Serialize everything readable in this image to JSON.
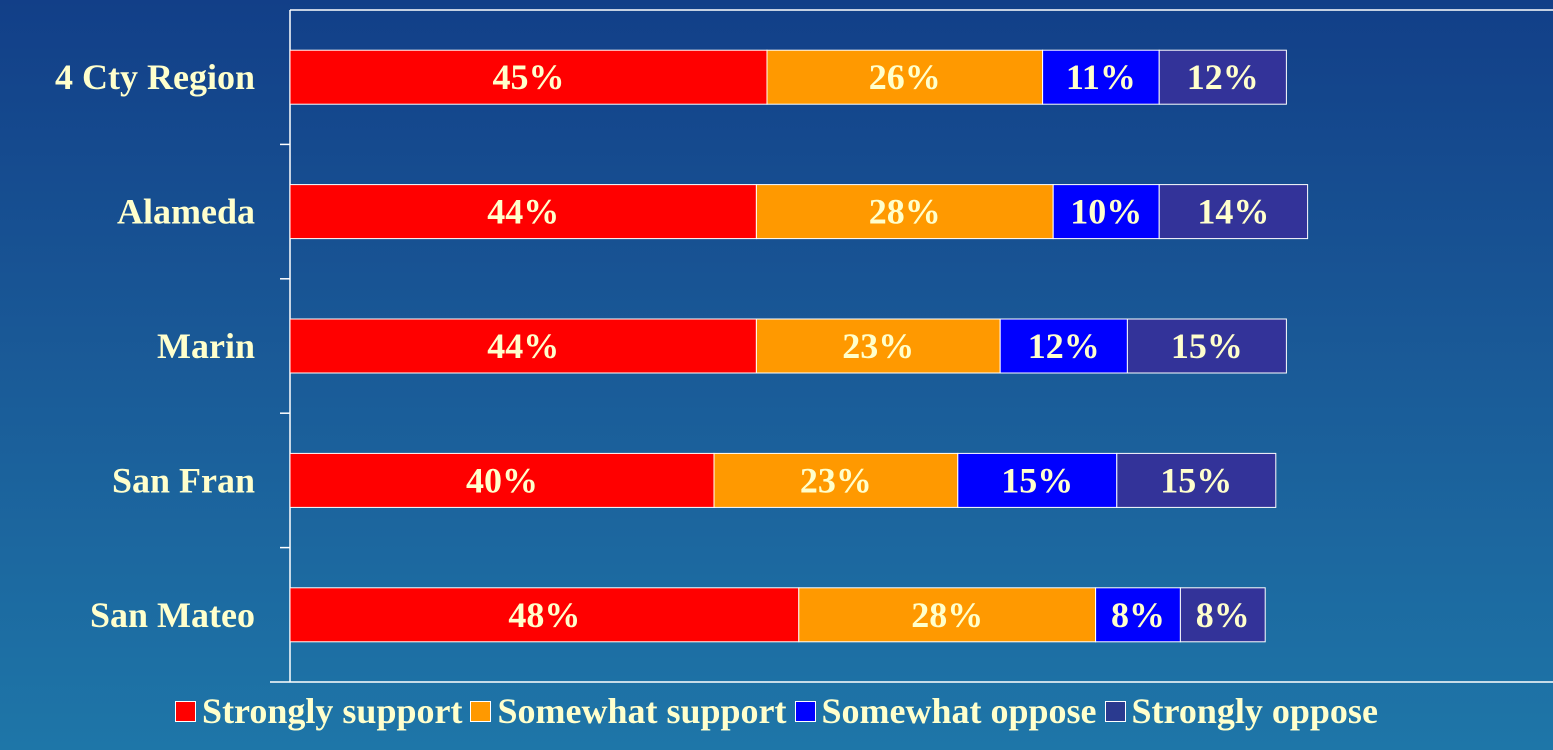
{
  "chart_data": {
    "type": "bar",
    "orientation": "horizontal",
    "stacked": true,
    "title": "",
    "xlabel": "",
    "ylabel": "",
    "categories": [
      "4 Cty Region",
      "Alameda",
      "Marin",
      "San Fran",
      "San Mateo"
    ],
    "series": [
      {
        "name": "Strongly support",
        "color": "#ff0000",
        "values": [
          45,
          44,
          44,
          40,
          48
        ],
        "labels": [
          "45%",
          "44%",
          "44%",
          "40%",
          "48%"
        ]
      },
      {
        "name": "Somewhat support",
        "color": "#ff9900",
        "values": [
          26,
          28,
          23,
          23,
          28
        ],
        "labels": [
          "26%",
          "28%",
          "23%",
          "23%",
          "28%"
        ]
      },
      {
        "name": "Somewhat oppose",
        "color": "#0000ff",
        "values": [
          11,
          10,
          12,
          15,
          8
        ],
        "labels": [
          "11%",
          "10%",
          "12%",
          "15%",
          "8%"
        ]
      },
      {
        "name": "Strongly oppose",
        "color": "#333399",
        "values": [
          12,
          14,
          15,
          15,
          8
        ],
        "labels": [
          "12%",
          "14%",
          "15%",
          "15%",
          "8%"
        ]
      }
    ],
    "legend_position": "bottom",
    "grid": false,
    "xlim": [
      0,
      100
    ]
  }
}
